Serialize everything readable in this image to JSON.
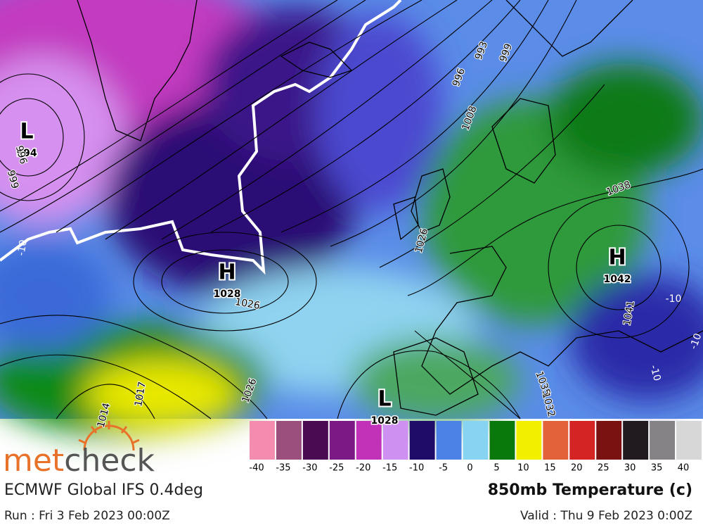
{
  "map": {
    "centers": [
      {
        "letter": "L",
        "pressure": "994"
      },
      {
        "letter": "H",
        "pressure": "1028"
      },
      {
        "letter": "H",
        "pressure": "1042"
      },
      {
        "letter": "L",
        "pressure": "1028"
      }
    ],
    "isobar_labels": [
      "993",
      "999",
      "996",
      "1008",
      "1026",
      "1038",
      "1035",
      "1032",
      "1026",
      "1026",
      "1017",
      "1014",
      "999",
      "996",
      "1041"
    ],
    "temperature_labels": [
      "-10",
      "-10",
      "-10",
      "-10"
    ]
  },
  "legend": {
    "colors": [
      "#f38cae",
      "#9a4f7c",
      "#4b0b52",
      "#7b1a84",
      "#c232b9",
      "#cf91f1",
      "#1f0b68",
      "#4c82e6",
      "#86d3f2",
      "#0a790c",
      "#f3ef00",
      "#e3623a",
      "#d42424",
      "#7a1212",
      "#211a1f",
      "#858385",
      "#d7d7d7"
    ],
    "ticks": [
      -40,
      -35,
      -30,
      -25,
      -20,
      -15,
      -10,
      -5,
      0,
      5,
      10,
      15,
      20,
      25,
      30,
      35,
      40
    ]
  },
  "logo": {
    "part1": "met",
    "part2": "check"
  },
  "footer": {
    "model": "ECMWF Global IFS 0.4deg",
    "variable": "850mb Temperature (c)",
    "run": "Run : Fri 3 Feb 2023 00:00Z",
    "valid": "Valid : Thu 9 Feb 2023 0:00Z"
  }
}
